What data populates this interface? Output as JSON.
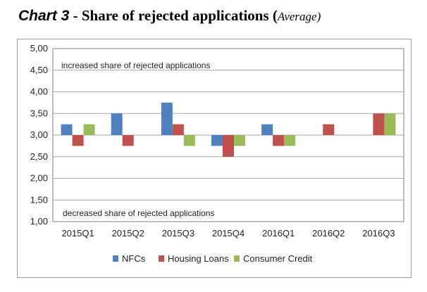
{
  "title": {
    "lead": "Chart 3",
    "sep": " - ",
    "main": "Share of rejected applications ",
    "open_paren": "(",
    "avg": "Average)"
  },
  "chart_data": {
    "type": "bar",
    "categories": [
      "2015Q1",
      "2015Q2",
      "2015Q3",
      "2015Q4",
      "2016Q1",
      "2016Q2",
      "2016Q3"
    ],
    "baseline": 3.0,
    "ylim": [
      1.0,
      5.0
    ],
    "yticks": [
      "1,00",
      "1,50",
      "2,00",
      "2,50",
      "3,00",
      "3,50",
      "4,00",
      "4,50",
      "5,00"
    ],
    "ytick_values": [
      1.0,
      1.5,
      2.0,
      2.5,
      3.0,
      3.5,
      4.0,
      4.5,
      5.0
    ],
    "grid": true,
    "legend_position": "bottom",
    "series": [
      {
        "name": "NFCs",
        "color": "#4f81bd",
        "values": [
          3.25,
          3.5,
          3.75,
          2.75,
          3.25,
          null,
          null
        ]
      },
      {
        "name": "Housing Loans",
        "color": "#c0504d",
        "values": [
          2.75,
          2.75,
          3.25,
          2.5,
          2.75,
          3.25,
          3.5
        ]
      },
      {
        "name": "Consumer Credit",
        "color": "#9bbb59",
        "values": [
          3.25,
          null,
          2.75,
          2.75,
          2.75,
          null,
          3.5
        ]
      }
    ],
    "annotations": {
      "top": "increased  share of rejected applications",
      "bottom": "decreased share of rejected applications"
    }
  }
}
